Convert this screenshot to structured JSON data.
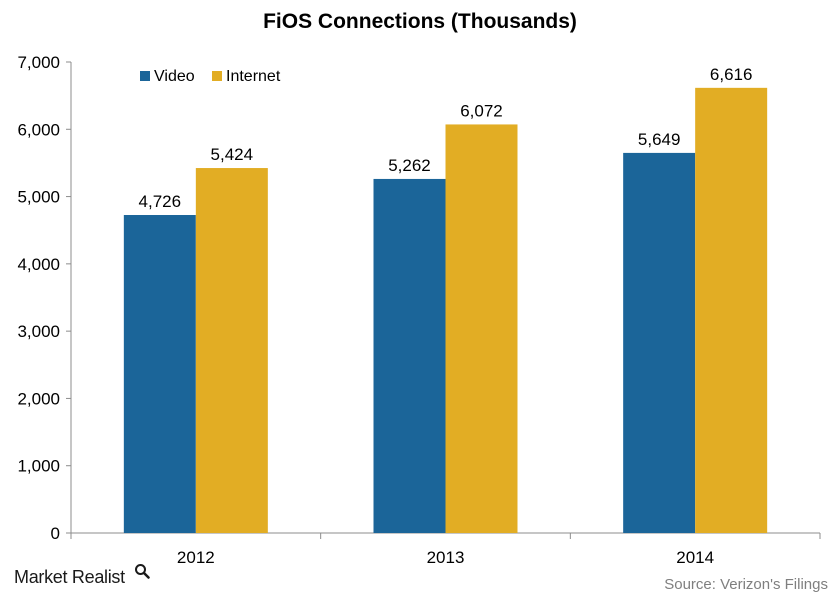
{
  "chart_data": {
    "type": "bar",
    "title": "FiOS Connections (Thousands)",
    "categories": [
      "2012",
      "2013",
      "2014"
    ],
    "series": [
      {
        "name": "Video",
        "values": [
          4726,
          5262,
          5649
        ],
        "labels": [
          "4,726",
          "5,262",
          "5,649"
        ],
        "color": "#1b6599"
      },
      {
        "name": "Internet",
        "values": [
          5424,
          6072,
          6616
        ],
        "labels": [
          "5,424",
          "6,072",
          "6,616"
        ],
        "color": "#e2ad24"
      }
    ],
    "ylim": [
      0,
      7000
    ],
    "yticks": [
      0,
      1000,
      2000,
      3000,
      4000,
      5000,
      6000,
      7000
    ],
    "ytick_labels": [
      "0",
      "1,000",
      "2,000",
      "3,000",
      "4,000",
      "5,000",
      "6,000",
      "7,000"
    ],
    "xlabel": "",
    "ylabel": "",
    "grid": false,
    "legend_position": "top-left"
  },
  "footer": {
    "brand": "Market Realist",
    "brand_icon": "magnifier-icon",
    "source": "Source: Verizon's Filings"
  }
}
